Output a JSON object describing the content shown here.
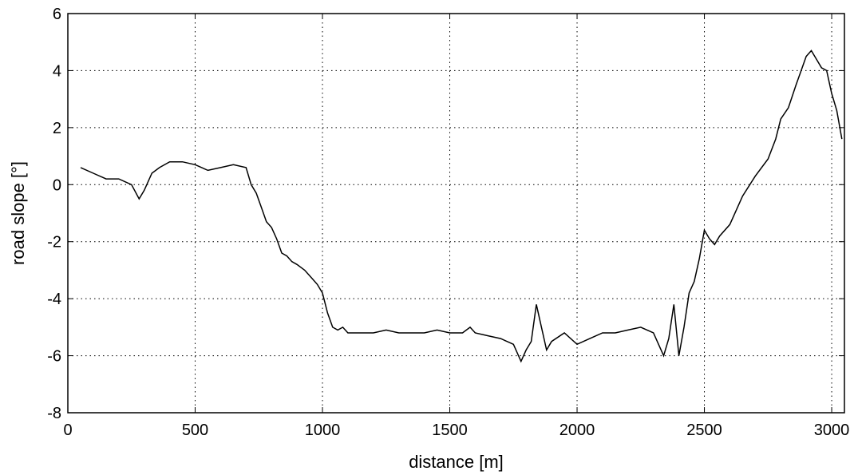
{
  "chart_data": {
    "type": "line",
    "title": "",
    "xlabel": "distance [m]",
    "ylabel": "road slope [°]",
    "xlim": [
      0,
      3050
    ],
    "ylim": [
      -8,
      6
    ],
    "xticks": [
      0,
      500,
      1000,
      1500,
      2000,
      2500,
      3000
    ],
    "yticks": [
      -8,
      -6,
      -4,
      -2,
      0,
      2,
      4,
      6
    ],
    "grid": true,
    "series": [
      {
        "color": "#000000",
        "x": [
          50,
          100,
          150,
          200,
          250,
          280,
          300,
          330,
          360,
          400,
          450,
          500,
          550,
          600,
          650,
          700,
          720,
          740,
          760,
          780,
          800,
          820,
          840,
          860,
          880,
          900,
          930,
          960,
          980,
          1000,
          1020,
          1040,
          1060,
          1080,
          1100,
          1150,
          1200,
          1250,
          1300,
          1350,
          1400,
          1450,
          1500,
          1550,
          1580,
          1600,
          1650,
          1700,
          1750,
          1780,
          1800,
          1820,
          1840,
          1860,
          1880,
          1900,
          1950,
          2000,
          2050,
          2100,
          2150,
          2200,
          2250,
          2300,
          2320,
          2340,
          2360,
          2380,
          2400,
          2420,
          2440,
          2460,
          2480,
          2500,
          2520,
          2540,
          2560,
          2600,
          2650,
          2700,
          2750,
          2780,
          2800,
          2830,
          2860,
          2880,
          2900,
          2920,
          2940,
          2960,
          2980,
          3000,
          3020,
          3040
        ],
        "y": [
          0.6,
          0.4,
          0.2,
          0.2,
          0.0,
          -0.5,
          -0.2,
          0.4,
          0.6,
          0.8,
          0.8,
          0.7,
          0.5,
          0.6,
          0.7,
          0.6,
          0.0,
          -0.3,
          -0.8,
          -1.3,
          -1.5,
          -1.9,
          -2.4,
          -2.5,
          -2.7,
          -2.8,
          -3.0,
          -3.3,
          -3.5,
          -3.8,
          -4.5,
          -5.0,
          -5.1,
          -5.0,
          -5.2,
          -5.2,
          -5.2,
          -5.1,
          -5.2,
          -5.2,
          -5.2,
          -5.1,
          -5.2,
          -5.2,
          -5.0,
          -5.2,
          -5.3,
          -5.4,
          -5.6,
          -6.2,
          -5.8,
          -5.5,
          -4.2,
          -5.0,
          -5.8,
          -5.5,
          -5.2,
          -5.6,
          -5.4,
          -5.2,
          -5.2,
          -5.1,
          -5.0,
          -5.2,
          -5.6,
          -6.0,
          -5.4,
          -4.2,
          -6.0,
          -5.0,
          -3.8,
          -3.4,
          -2.6,
          -1.6,
          -1.9,
          -2.1,
          -1.8,
          -1.4,
          -0.4,
          0.3,
          0.9,
          1.6,
          2.3,
          2.7,
          3.5,
          4.0,
          4.5,
          4.7,
          4.4,
          4.1,
          4.0,
          3.2,
          2.6,
          1.6
        ]
      }
    ]
  }
}
